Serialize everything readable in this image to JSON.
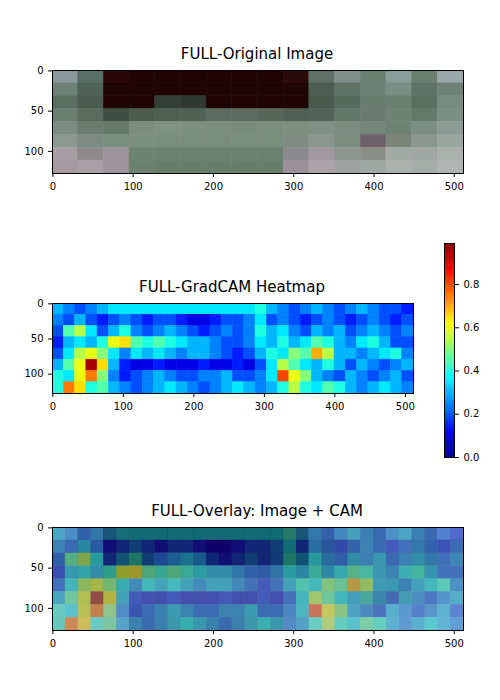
{
  "chart_data": [
    {
      "type": "image",
      "title": "FULL-Original Image",
      "xlim": [
        -0.5,
        511.5
      ],
      "ylim": [
        127.5,
        -0.5
      ],
      "xticks": [
        0,
        100,
        200,
        300,
        400,
        500
      ],
      "yticks": [
        0,
        50,
        100
      ],
      "pixels": [
        [
          "#8a9a9a",
          "#5a6e68",
          "#2a0808",
          "#1e0405",
          "#1e0405",
          "#1e0405",
          "#1e0405",
          "#1e0405",
          "#1e0405",
          "#2a0a0a",
          "#5d6f66",
          "#7d8f88",
          "#6a7e72",
          "#8a9c98",
          "#6a7e70",
          "#98a8a8"
        ],
        [
          "#6c8078",
          "#4e6258",
          "#1e0405",
          "#1e0405",
          "#1e0405",
          "#1e0405",
          "#1e0405",
          "#1e0405",
          "#1e0405",
          "#1e0405",
          "#4a5e52",
          "#5e7266",
          "#6c8076",
          "#7a8e86",
          "#5e7268",
          "#6e8278"
        ],
        [
          "#5a6e62",
          "#4a5c50",
          "#1e0405",
          "#1e0405",
          "#334038",
          "#2e3a32",
          "#1e0405",
          "#1e0405",
          "#1e0405",
          "#1e0405",
          "#485a4e",
          "#566a5e",
          "#687c70",
          "#6a7e72",
          "#5a6e62",
          "#768a80"
        ],
        [
          "#6a7e72",
          "#5a6c60",
          "#3e4e44",
          "#4a5c4e",
          "#4e6052",
          "#506256",
          "#5a6c62",
          "#5a6c62",
          "#56685c",
          "#4e6056",
          "#52645a",
          "#62766a",
          "#6a7c72",
          "#6e8276",
          "#64786c",
          "#7a8e84"
        ],
        [
          "#7a8c84",
          "#6a7c70",
          "#667a6c",
          "#7a8e80",
          "#7e9284",
          "#7c9082",
          "#7a8e80",
          "#788c7e",
          "#7a8e80",
          "#7c9082",
          "#7e9084",
          "#7a8c80",
          "#72867a",
          "#6e8276",
          "#7a8e84",
          "#8a9c94"
        ],
        [
          "#8c9890",
          "#7e8a84",
          "#7a8e80",
          "#7c9082",
          "#7a8e7e",
          "#7a8e7e",
          "#7a8e7e",
          "#7a8e7e",
          "#7a8e7e",
          "#7e8c84",
          "#8a9690",
          "#7a8c80",
          "#6e6068",
          "#7a8478",
          "#8a9890",
          "#9aa6a0"
        ],
        [
          "#a6a0a4",
          "#8e8a8c",
          "#9a949a",
          "#6e8472",
          "#6c8270",
          "#6c8270",
          "#6c8270",
          "#6c8270",
          "#6c8270",
          "#8a8a8e",
          "#a09aa0",
          "#8e9690",
          "#8a9088",
          "#a4aaa6",
          "#a0a6a2",
          "#aab0ac"
        ],
        [
          "#a49aa0",
          "#a8a0a6",
          "#9e949c",
          "#6a8070",
          "#687e6c",
          "#687e6c",
          "#687e6c",
          "#687e6c",
          "#687e6c",
          "#9a9098",
          "#aaa2a8",
          "#9ea2a0",
          "#a0a6a2",
          "#aab0ac",
          "#a6aca8",
          "#b0b4b2"
        ]
      ]
    },
    {
      "type": "heatmap",
      "title": "FULL-GradCAM Heatmap",
      "xlim": [
        -0.5,
        511.5
      ],
      "ylim": [
        127.5,
        -0.5
      ],
      "xticks": [
        0,
        100,
        200,
        300,
        400,
        500
      ],
      "yticks": [
        0,
        50,
        100
      ],
      "cells": [
        [
          0.3,
          0.25,
          0.2,
          0.25,
          0.3,
          0.35,
          0.35,
          0.35,
          0.35,
          0.35,
          0.35,
          0.35,
          0.35,
          0.35,
          0.35,
          0.35,
          0.35,
          0.35,
          0.4,
          0.3,
          0.25,
          0.2,
          0.25,
          0.3,
          0.25,
          0.2,
          0.25,
          0.3,
          0.25,
          0.2,
          0.2,
          0.15
        ],
        [
          0.25,
          0.2,
          0.3,
          0.2,
          0.15,
          0.2,
          0.25,
          0.2,
          0.15,
          0.2,
          0.2,
          0.15,
          0.1,
          0.1,
          0.15,
          0.2,
          0.2,
          0.25,
          0.35,
          0.2,
          0.25,
          0.2,
          0.15,
          0.2,
          0.25,
          0.2,
          0.15,
          0.2,
          0.25,
          0.2,
          0.15,
          0.2
        ],
        [
          0.2,
          0.45,
          0.55,
          0.35,
          0.2,
          0.3,
          0.4,
          0.25,
          0.2,
          0.25,
          0.3,
          0.25,
          0.2,
          0.15,
          0.2,
          0.25,
          0.2,
          0.25,
          0.4,
          0.3,
          0.35,
          0.25,
          0.2,
          0.3,
          0.25,
          0.3,
          0.2,
          0.25,
          0.3,
          0.25,
          0.2,
          0.25
        ],
        [
          0.15,
          0.3,
          0.35,
          0.3,
          0.4,
          0.6,
          0.65,
          0.45,
          0.4,
          0.45,
          0.4,
          0.35,
          0.3,
          0.3,
          0.25,
          0.2,
          0.2,
          0.25,
          0.35,
          0.3,
          0.4,
          0.3,
          0.35,
          0.45,
          0.4,
          0.3,
          0.25,
          0.35,
          0.4,
          0.3,
          0.2,
          0.2
        ],
        [
          0.2,
          0.35,
          0.55,
          0.6,
          0.5,
          0.35,
          0.25,
          0.35,
          0.3,
          0.35,
          0.3,
          0.25,
          0.3,
          0.3,
          0.25,
          0.2,
          0.15,
          0.2,
          0.3,
          0.4,
          0.35,
          0.5,
          0.45,
          0.7,
          0.55,
          0.3,
          0.3,
          0.25,
          0.3,
          0.35,
          0.4,
          0.25
        ],
        [
          0.3,
          0.45,
          0.6,
          0.95,
          0.65,
          0.3,
          0.15,
          0.1,
          0.1,
          0.15,
          0.1,
          0.1,
          0.1,
          0.15,
          0.1,
          0.1,
          0.15,
          0.1,
          0.2,
          0.35,
          0.55,
          0.45,
          0.35,
          0.3,
          0.4,
          0.3,
          0.2,
          0.3,
          0.25,
          0.2,
          0.25,
          0.3
        ],
        [
          0.4,
          0.35,
          0.6,
          0.75,
          0.5,
          0.25,
          0.15,
          0.2,
          0.25,
          0.3,
          0.25,
          0.2,
          0.2,
          0.25,
          0.25,
          0.3,
          0.2,
          0.2,
          0.25,
          0.35,
          0.8,
          0.6,
          0.5,
          0.3,
          0.25,
          0.2,
          0.3,
          0.25,
          0.2,
          0.25,
          0.3,
          0.2
        ],
        [
          0.4,
          0.75,
          0.65,
          0.4,
          0.45,
          0.3,
          0.25,
          0.2,
          0.25,
          0.3,
          0.35,
          0.3,
          0.25,
          0.2,
          0.25,
          0.3,
          0.35,
          0.3,
          0.25,
          0.3,
          0.4,
          0.55,
          0.4,
          0.35,
          0.45,
          0.4,
          0.3,
          0.25,
          0.3,
          0.35,
          0.3,
          0.25
        ]
      ],
      "colorbar_range": [
        0,
        0.99
      ],
      "colorbar_ticks": [
        {
          "value": 0,
          "label": "0.0"
        },
        0.2,
        0.4,
        0.6,
        0.8
      ]
    },
    {
      "type": "overlay",
      "title": "FULL-Overlay: Image + CAM",
      "xlim": [
        -0.5,
        511.5
      ],
      "ylim": [
        127.5,
        -0.5
      ],
      "xticks": [
        0,
        100,
        200,
        300,
        400,
        500
      ],
      "yticks": [
        0,
        50,
        100
      ]
    }
  ]
}
